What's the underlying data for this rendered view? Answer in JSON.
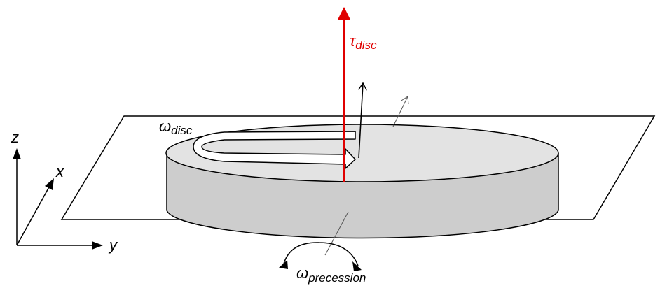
{
  "labels": {
    "tau": {
      "main": "τ",
      "sub": "disc"
    },
    "omega_disc": {
      "main": "ω",
      "sub": "disc"
    },
    "omega_precession": {
      "main": "ω",
      "sub": "precession"
    },
    "axis_z": "z",
    "axis_x": "x",
    "axis_y": "y"
  },
  "colors": {
    "torque_arrow": "#e00000",
    "line": "#000000",
    "disc_top": "#e3e3e3",
    "disc_side": "#cdcdcd",
    "background": "#ffffff",
    "arrow_fill": "#ffffff",
    "guide_line": "#555555"
  }
}
